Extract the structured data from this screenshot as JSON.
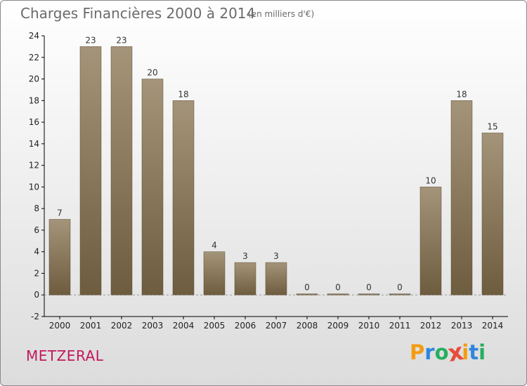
{
  "header": {
    "title": "Charges Financières 2000 à 2014",
    "unit": "(en milliers d'€)"
  },
  "footer": {
    "commune": "METZERAL",
    "logo_letters": [
      "P",
      "r",
      "o",
      "x",
      "i",
      "t",
      "i"
    ],
    "logo_colors": [
      "#f39c12",
      "#2e86de",
      "#27ae60",
      "#e74c3c",
      "#f39c12",
      "#2e86de",
      "#27ae60"
    ]
  },
  "colors": {
    "bar_light": "#a49479",
    "bar_dark": "#6e5c3f",
    "axis": "#000000",
    "grid": "#9a9a9a"
  },
  "chart_data": {
    "type": "bar",
    "categories": [
      "2000",
      "2001",
      "2002",
      "2003",
      "2004",
      "2005",
      "2006",
      "2007",
      "2008",
      "2009",
      "2010",
      "2011",
      "2012",
      "2013",
      "2014"
    ],
    "values": [
      7,
      23,
      23,
      20,
      18,
      4,
      3,
      3,
      0,
      0,
      0,
      0,
      10,
      18,
      15
    ],
    "title": "Charges Financières 2000 à 2014",
    "subtitle": "(en milliers d'€)",
    "ylim": [
      -2,
      24
    ],
    "yticks": [
      -2,
      0,
      2,
      4,
      6,
      8,
      10,
      12,
      14,
      16,
      18,
      20,
      22,
      24
    ],
    "grid": false
  }
}
